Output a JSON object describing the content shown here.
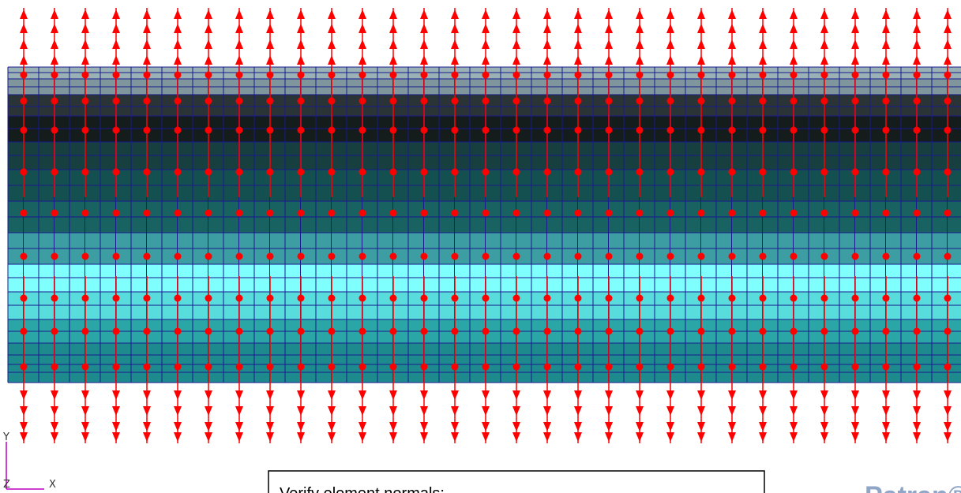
{
  "triad": {
    "y": "Y",
    "z": "Z",
    "x": "X"
  },
  "message": "Verify element normals:",
  "logo": "Patran®"
}
